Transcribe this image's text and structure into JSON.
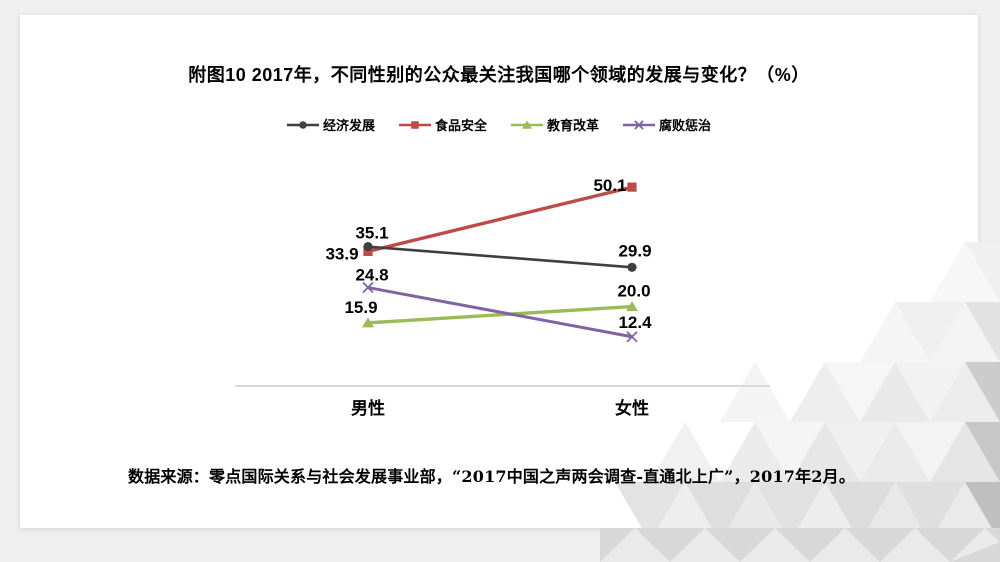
{
  "title": "附图10 2017年，不同性别的公众最关注我国哪个领域的发展与变化？（%）",
  "source_note": "数据来源：零点国际关系与社会发展事业部，“2017中国之声两会调查-直通北上广”，2017年2月。",
  "chart_data": {
    "type": "line",
    "categories": [
      "男性",
      "女性"
    ],
    "series": [
      {
        "name": "经济发展",
        "values": [
          35.1,
          29.9
        ],
        "labels": [
          "35.1",
          "29.9"
        ],
        "color": "#3f3f3f",
        "marker": "circle",
        "line_width": 2.6
      },
      {
        "name": "食品安全",
        "values": [
          33.9,
          50.1
        ],
        "labels": [
          "33.9",
          "50.1"
        ],
        "color": "#be4b48",
        "marker": "square",
        "line_width": 3.4
      },
      {
        "name": "教育改革",
        "values": [
          15.9,
          20.0
        ],
        "labels": [
          "15.9",
          "20.0"
        ],
        "color": "#9bbb59",
        "marker": "triangle",
        "line_width": 3.4
      },
      {
        "name": "腐败惩治",
        "values": [
          24.8,
          12.4
        ],
        "labels": [
          "24.8",
          "12.4"
        ],
        "color": "#8064a2",
        "marker": "x",
        "line_width": 3.0
      }
    ],
    "ylim": [
      0,
      60
    ],
    "grid": false,
    "legend_position": "top",
    "data_labels": true,
    "axis_line_color": "#d9d9d9",
    "label_color": "#000000"
  }
}
